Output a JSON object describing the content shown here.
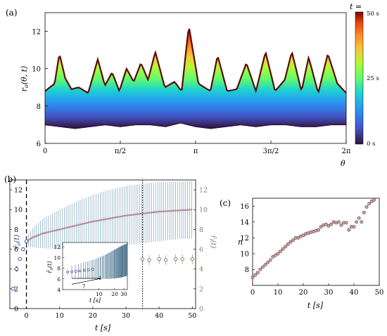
{
  "chart_data": [
    {
      "panel": "(a)",
      "type": "area",
      "xlabel": "θ",
      "ylabel": "r_o(θ, t)",
      "xticks": [
        "0",
        "π/2",
        "π",
        "3π/2",
        "2π"
      ],
      "xlim": [
        0,
        6.2832
      ],
      "ylim": [
        6,
        13
      ],
      "yticks": [
        6,
        8,
        10,
        12
      ],
      "colorbar": {
        "title": "t =",
        "ticks": [
          "50 s",
          "25 s",
          "0 s"
        ],
        "range": [
          0,
          50
        ],
        "unit": "s"
      },
      "curves": [
        {
          "name": "0 s",
          "theta": [
            0,
            0.314,
            0.628,
            0.942,
            1.257,
            1.571,
            1.885,
            2.199,
            2.513,
            2.827,
            3.142,
            3.456,
            3.77,
            4.084,
            4.398,
            4.712,
            5.027,
            5.341,
            5.655,
            5.969,
            6.283
          ],
          "r": [
            7.0,
            6.9,
            6.8,
            6.9,
            7.0,
            6.9,
            7.0,
            7.0,
            6.9,
            7.1,
            6.9,
            6.8,
            6.9,
            7.0,
            6.9,
            7.0,
            7.0,
            6.9,
            6.9,
            7.0,
            7.0
          ]
        },
        {
          "name": "50 s",
          "theta": [
            0,
            0.2,
            0.3,
            0.42,
            0.55,
            0.7,
            0.9,
            1.1,
            1.25,
            1.4,
            1.55,
            1.7,
            1.85,
            2.0,
            2.15,
            2.3,
            2.5,
            2.7,
            2.85,
            3.0,
            3.2,
            3.45,
            3.6,
            3.8,
            4.0,
            4.2,
            4.4,
            4.6,
            4.8,
            5.0,
            5.15,
            5.35,
            5.5,
            5.7,
            5.9,
            6.1,
            6.283
          ],
          "r": [
            8.8,
            9.2,
            10.8,
            9.5,
            8.9,
            9.0,
            8.7,
            10.5,
            9.1,
            9.8,
            8.8,
            10.0,
            9.3,
            10.3,
            9.4,
            10.9,
            9.0,
            9.3,
            8.8,
            12.3,
            9.2,
            8.8,
            10.7,
            8.8,
            8.9,
            10.3,
            8.8,
            10.9,
            8.8,
            9.4,
            10.9,
            8.8,
            10.6,
            8.7,
            10.8,
            9.2,
            8.7
          ]
        }
      ]
    },
    {
      "panel": "(b)",
      "type": "scatter",
      "xlabel": "t [s]",
      "ylabel": "r̄_o(t)",
      "ylabel_right": "r̄_i(t)",
      "xlim": [
        -5,
        51
      ],
      "xticks": [
        0,
        10,
        20,
        30,
        40,
        50
      ],
      "ylim": [
        0,
        13
      ],
      "yticks": [
        0,
        2,
        4,
        6,
        8,
        10,
        12
      ],
      "vlines": [
        0,
        35
      ],
      "series": [
        {
          "role": "outer mean (blue) with spread",
          "x": [
            -4,
            -3,
            -2,
            -1,
            0,
            2,
            5,
            10,
            15,
            20,
            25,
            30,
            35,
            40,
            45,
            50
          ],
          "y": [
            2.0,
            4.0,
            5.0,
            6.0,
            6.8,
            7.2,
            7.6,
            8.0,
            8.4,
            8.8,
            9.1,
            9.4,
            9.6,
            9.8,
            9.9,
            10.0
          ],
          "err": [
            0,
            0,
            0,
            0,
            0.5,
            1.0,
            1.5,
            2.0,
            2.4,
            2.7,
            2.9,
            3.0,
            3.0,
            3.0,
            2.9,
            2.9
          ]
        },
        {
          "role": "inner mean (brown)",
          "x": [
            35,
            37,
            40,
            42,
            45,
            47,
            50
          ],
          "y": [
            5.0,
            4.9,
            5.0,
            4.9,
            5.0,
            5.0,
            5.0
          ],
          "err": [
            0.6,
            0.5,
            0.5,
            0.5,
            0.5,
            0.5,
            0.5
          ]
        }
      ],
      "inset": {
        "xlabel": "t [s]",
        "ylabel": "r̄_o(t)",
        "xticks": [
          "10",
          "20",
          "30"
        ],
        "yticks": [
          4,
          6,
          8,
          10,
          12
        ],
        "slope_labels": [
          "1",
          "7"
        ]
      }
    },
    {
      "panel": "(c)",
      "type": "scatter",
      "xlabel": "t [s]",
      "ylabel": "n",
      "xlim": [
        0,
        50
      ],
      "ylim": [
        6,
        17
      ],
      "xticks": [
        0,
        10,
        20,
        30,
        40,
        50
      ],
      "yticks": [
        8,
        10,
        12,
        14,
        16
      ],
      "x": [
        0,
        1,
        2,
        3,
        4,
        5,
        6,
        7,
        8,
        9,
        10,
        11,
        12,
        13,
        14,
        15,
        16,
        17,
        18,
        19,
        20,
        21,
        22,
        23,
        24,
        25,
        26,
        27,
        28,
        29,
        30,
        31,
        32,
        33,
        34,
        35,
        36,
        37,
        38,
        39,
        40,
        41,
        42,
        43,
        44,
        45,
        46,
        47,
        48
      ],
      "y": [
        7.0,
        7.3,
        7.6,
        8.0,
        8.3,
        8.6,
        8.9,
        9.2,
        9.6,
        9.8,
        10.0,
        10.3,
        10.6,
        10.9,
        11.2,
        11.5,
        11.7,
        12.0,
        12.0,
        12.2,
        12.3,
        12.5,
        12.6,
        12.7,
        12.8,
        12.9,
        13.0,
        13.4,
        13.6,
        13.7,
        13.5,
        13.7,
        14.0,
        13.9,
        14.0,
        13.6,
        13.9,
        13.9,
        13.0,
        13.4,
        13.4,
        14.0,
        14.5,
        14.0,
        15.2,
        15.9,
        16.3,
        16.6,
        16.8
      ]
    }
  ]
}
